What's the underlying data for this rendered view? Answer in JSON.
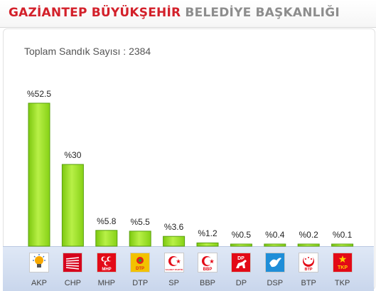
{
  "header": {
    "title_red": "GAZİANTEP BÜYÜKŞEHİR",
    "title_grey": "BELEDİYE BAŞKANLIĞI"
  },
  "summary": {
    "ballot_count_label": "Toplam Sandık Sayısı : 2384"
  },
  "colors": {
    "bar_fill": "#9be01f",
    "bar_stroke": "#5aa010",
    "title_red": "#d3202a",
    "title_grey": "#8d8d8d"
  },
  "chart_data": {
    "type": "bar",
    "categories": [
      "AKP",
      "CHP",
      "MHP",
      "DTP",
      "SP",
      "BBP",
      "DP",
      "DSP",
      "BTP",
      "TKP"
    ],
    "values": [
      52.5,
      30,
      5.8,
      5.5,
      3.6,
      1.2,
      0.5,
      0.4,
      0.2,
      0.1
    ],
    "value_labels": [
      "%52.5",
      "%30",
      "%5.8",
      "%5.5",
      "%3.6",
      "%1.2",
      "%0.5",
      "%0.4",
      "%0.2",
      "%0.1"
    ],
    "title": "",
    "xlabel": "",
    "ylabel": "",
    "ylim": [
      0,
      52.5
    ],
    "grid": false,
    "legend": "none"
  },
  "party_logos": [
    {
      "party": "AKP",
      "icon": "lightbulb-icon",
      "color": "#f6a800"
    },
    {
      "party": "CHP",
      "icon": "six-arrows-icon",
      "color": "#d6001c"
    },
    {
      "party": "MHP",
      "icon": "three-crescents-icon",
      "color": "#e30a17",
      "text": "MHP"
    },
    {
      "party": "DTP",
      "icon": "dtp-flower-icon",
      "color": "#f2c200",
      "text": "DTP"
    },
    {
      "party": "SP",
      "icon": "crescent-star-icon",
      "color": "#e30a17",
      "text": "SAADET PARTİSİ"
    },
    {
      "party": "BBP",
      "icon": "crescent-star-icon",
      "color": "#e30a17",
      "text": "BBP"
    },
    {
      "party": "DP",
      "icon": "horse-icon",
      "color": "#e30a17",
      "text": "DP"
    },
    {
      "party": "DSP",
      "icon": "dove-icon",
      "color": "#1f8ed8"
    },
    {
      "party": "BTP",
      "icon": "crescent-stars-icon",
      "color": "#e30a17",
      "text": "BTP"
    },
    {
      "party": "TKP",
      "icon": "tkp-star-icon",
      "color": "#e30a17",
      "text": "TKP"
    }
  ]
}
